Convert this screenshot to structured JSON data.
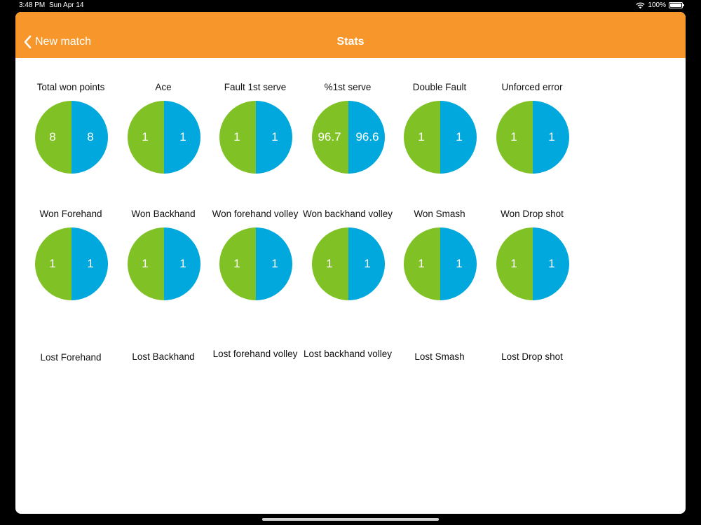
{
  "status_bar": {
    "time": "3:48 PM",
    "date": "Sun Apr 14",
    "battery": "100%"
  },
  "nav": {
    "back_label": "New match",
    "title": "Stats"
  },
  "colors": {
    "accent": "#f7962a",
    "left_player": "#80c225",
    "right_player": "#00a8dd"
  },
  "rows": [
    {
      "items": [
        {
          "label": "Total won points",
          "left": "8",
          "right": "8"
        },
        {
          "label": "Ace",
          "left": "1",
          "right": "1"
        },
        {
          "label": "Fault 1st serve",
          "left": "1",
          "right": "1"
        },
        {
          "label": "%1st serve",
          "left": "96.7",
          "right": "96.6"
        },
        {
          "label": "Double Fault",
          "left": "1",
          "right": "1"
        },
        {
          "label": "Unforced error",
          "left": "1",
          "right": "1"
        }
      ]
    },
    {
      "items": [
        {
          "label": "Won Forehand",
          "left": "1",
          "right": "1"
        },
        {
          "label": "Won Backhand",
          "left": "1",
          "right": "1"
        },
        {
          "label": "Won forehand volley",
          "left": "1",
          "right": "1"
        },
        {
          "label": "Won backhand volley",
          "left": "1",
          "right": "1"
        },
        {
          "label": "Won Smash",
          "left": "1",
          "right": "1"
        },
        {
          "label": "Won Drop shot",
          "left": "1",
          "right": "1"
        }
      ]
    },
    {
      "items": [
        {
          "label": "Lost Forehand"
        },
        {
          "label": "Lost Backhand"
        },
        {
          "label": "Lost forehand volley"
        },
        {
          "label": "Lost backhand volley"
        },
        {
          "label": "Lost Smash"
        },
        {
          "label": "Lost Drop shot"
        }
      ]
    }
  ]
}
